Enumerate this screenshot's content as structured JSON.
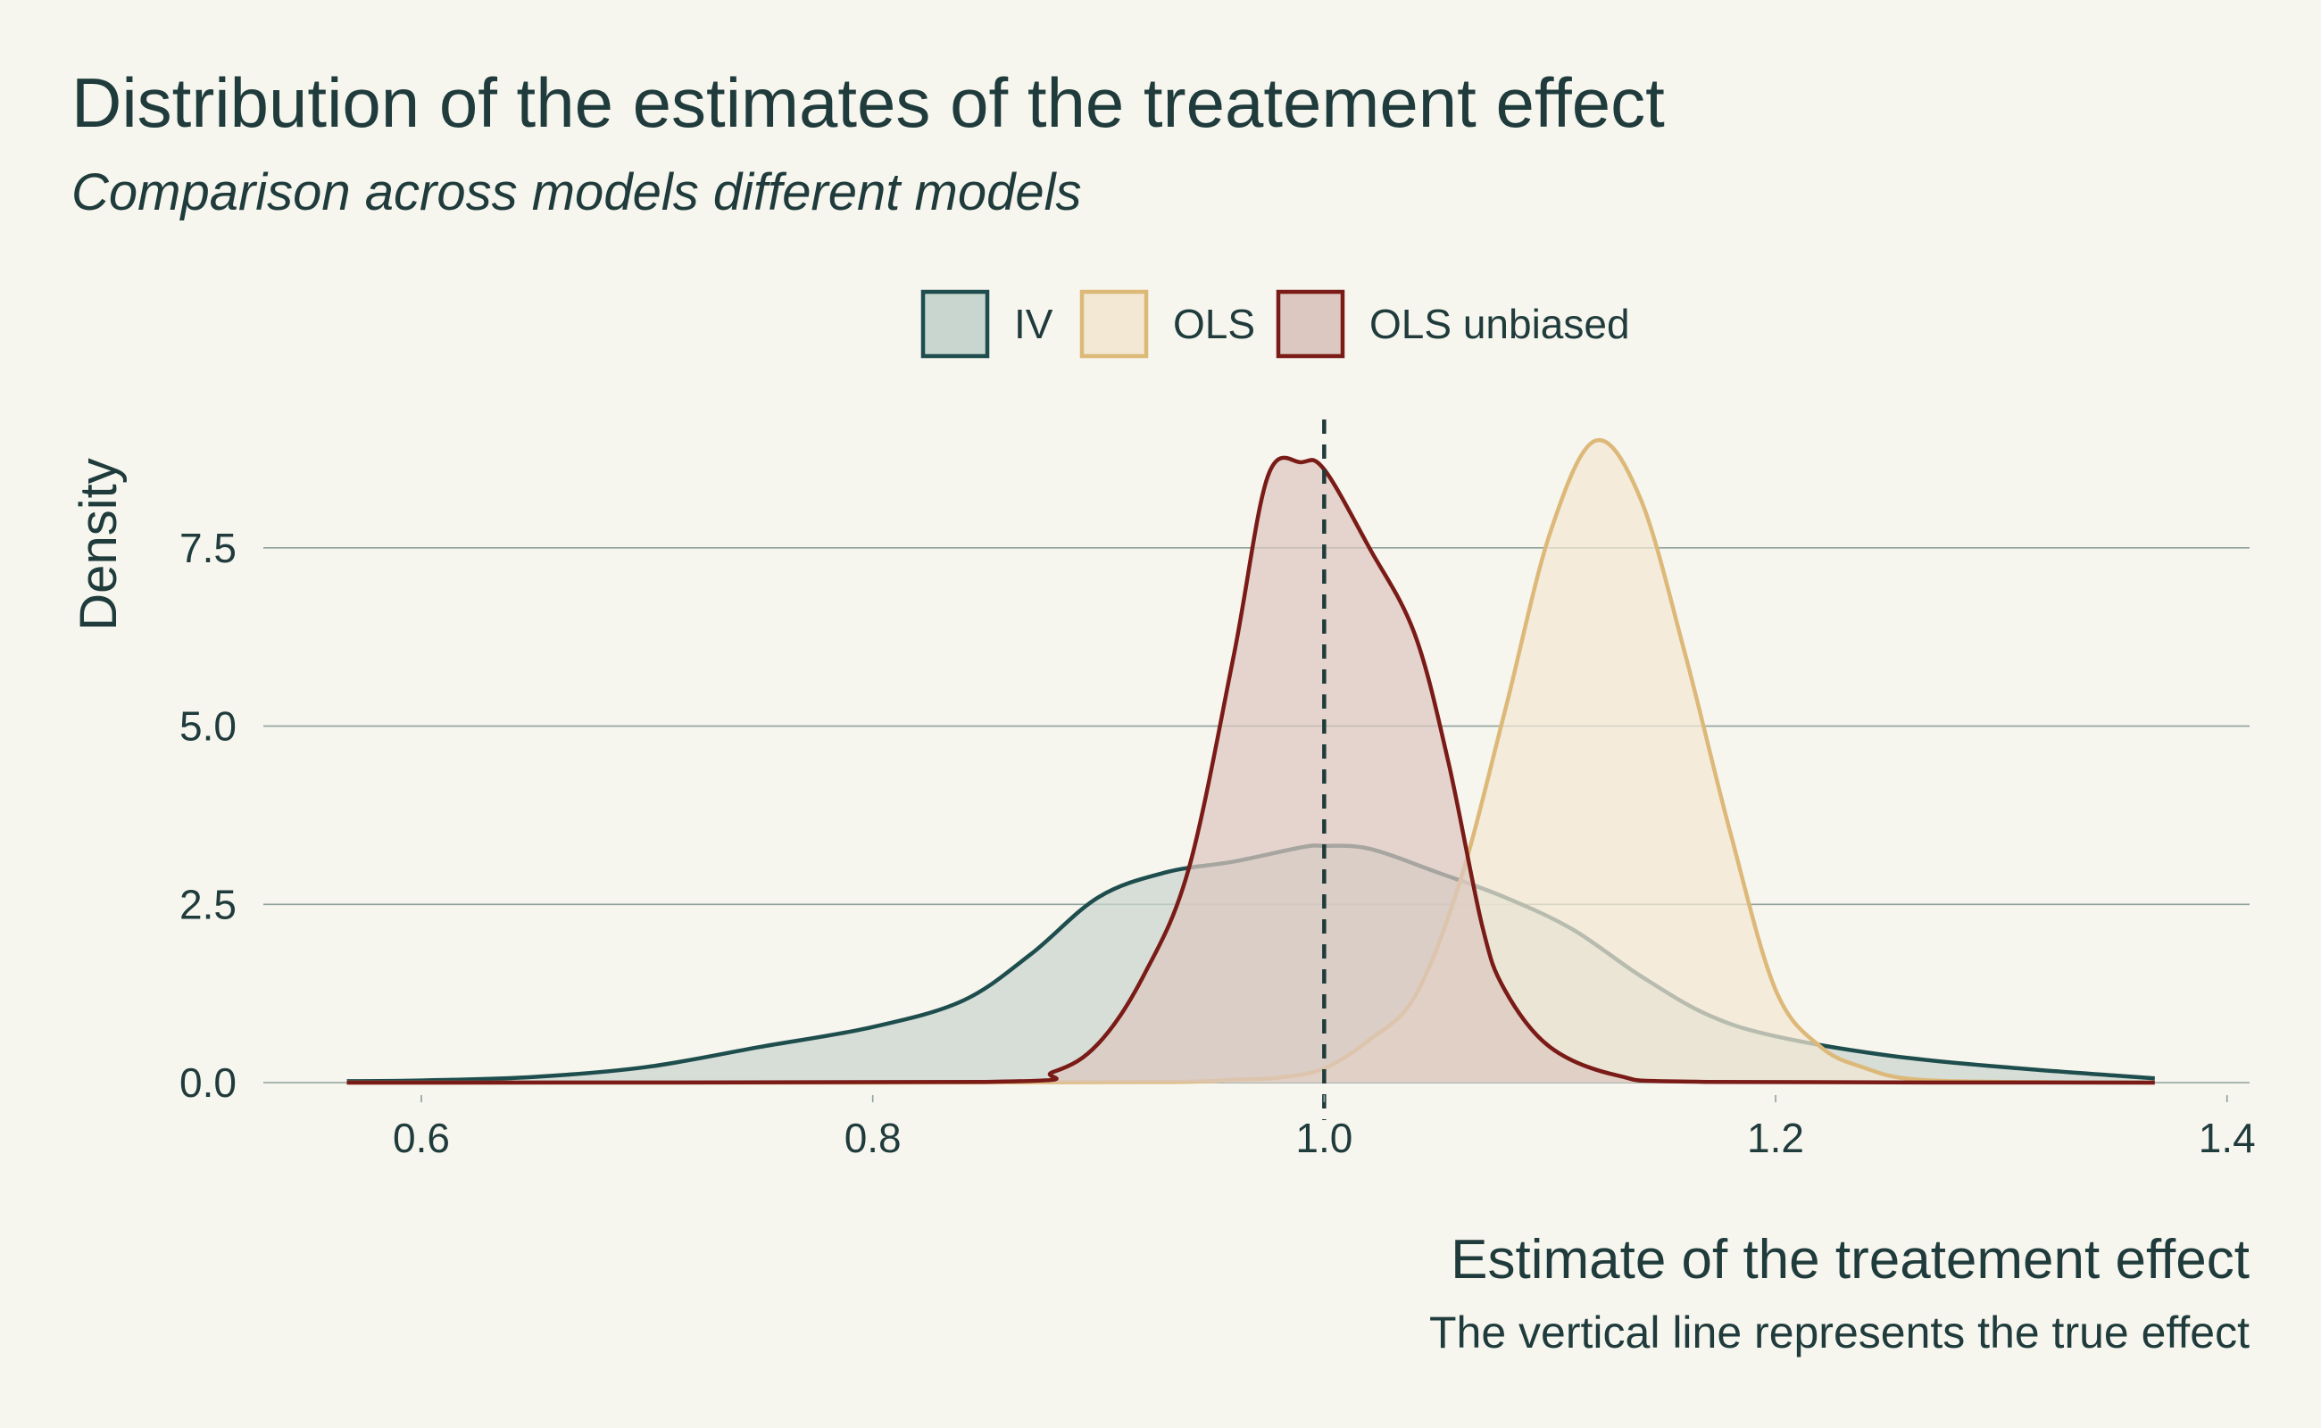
{
  "chart_data": {
    "type": "area",
    "title": "Distribution of the estimates of the treatement effect",
    "subtitle": "Comparison across models different models",
    "xlabel": "Estimate of the treatement effect",
    "ylabel": "Density",
    "caption": "The vertical line represents the true effect",
    "xlim": [
      0.53,
      1.41
    ],
    "ylim": [
      0,
      9.3
    ],
    "x_ticks": [
      0.6,
      0.8,
      1.0,
      1.2,
      1.4
    ],
    "x_tick_labels": [
      "0.6",
      "0.8",
      "1.0",
      "1.2",
      "1.4"
    ],
    "y_ticks": [
      0,
      2.5,
      5.0,
      7.5
    ],
    "y_tick_labels": [
      "0.0",
      "2.5",
      "5.0",
      "7.5"
    ],
    "grid": "horizontal",
    "legend_position": "top",
    "reference_line": {
      "x": 1.0,
      "style": "dashed"
    },
    "series": [
      {
        "name": "IV",
        "stroke": "#1e4d4d",
        "fill": "#c9d5cf",
        "points": [
          [
            0.567,
            0.02
          ],
          [
            0.6,
            0.03
          ],
          [
            0.65,
            0.08
          ],
          [
            0.7,
            0.22
          ],
          [
            0.75,
            0.5
          ],
          [
            0.8,
            0.78
          ],
          [
            0.84,
            1.15
          ],
          [
            0.87,
            1.8
          ],
          [
            0.9,
            2.6
          ],
          [
            0.93,
            2.95
          ],
          [
            0.96,
            3.1
          ],
          [
            0.99,
            3.3
          ],
          [
            1.0,
            3.32
          ],
          [
            1.02,
            3.28
          ],
          [
            1.05,
            2.95
          ],
          [
            1.08,
            2.6
          ],
          [
            1.11,
            2.15
          ],
          [
            1.14,
            1.5
          ],
          [
            1.17,
            0.95
          ],
          [
            1.2,
            0.65
          ],
          [
            1.25,
            0.38
          ],
          [
            1.3,
            0.22
          ],
          [
            1.35,
            0.1
          ],
          [
            1.368,
            0.06
          ]
        ]
      },
      {
        "name": "OLS",
        "stroke": "#ddb979",
        "fill": "#f2e8d4",
        "points": [
          [
            0.567,
            0.0
          ],
          [
            0.8,
            0.0
          ],
          [
            0.93,
            0.01
          ],
          [
            0.96,
            0.04
          ],
          [
            0.98,
            0.07
          ],
          [
            1.0,
            0.2
          ],
          [
            1.02,
            0.6
          ],
          [
            1.04,
            1.2
          ],
          [
            1.06,
            2.8
          ],
          [
            1.08,
            5.2
          ],
          [
            1.1,
            7.7
          ],
          [
            1.12,
            9.0
          ],
          [
            1.14,
            8.2
          ],
          [
            1.16,
            6.0
          ],
          [
            1.18,
            3.5
          ],
          [
            1.2,
            1.3
          ],
          [
            1.22,
            0.5
          ],
          [
            1.24,
            0.2
          ],
          [
            1.26,
            0.05
          ],
          [
            1.3,
            0.01
          ],
          [
            1.368,
            0.0
          ]
        ]
      },
      {
        "name": "OLS unbiased",
        "stroke": "#7a1b17",
        "fill": "#dcc8c0",
        "points": [
          [
            0.567,
            0.0
          ],
          [
            0.85,
            0.01
          ],
          [
            0.88,
            0.15
          ],
          [
            0.9,
            0.55
          ],
          [
            0.92,
            1.5
          ],
          [
            0.94,
            3.0
          ],
          [
            0.96,
            6.0
          ],
          [
            0.975,
            8.5
          ],
          [
            0.99,
            8.7
          ],
          [
            1.0,
            8.6
          ],
          [
            1.02,
            7.5
          ],
          [
            1.04,
            6.3
          ],
          [
            1.055,
            4.5
          ],
          [
            1.07,
            2.2
          ],
          [
            1.08,
            1.3
          ],
          [
            1.1,
            0.5
          ],
          [
            1.13,
            0.1
          ],
          [
            1.17,
            0.01
          ],
          [
            1.368,
            0.0
          ]
        ]
      }
    ]
  }
}
